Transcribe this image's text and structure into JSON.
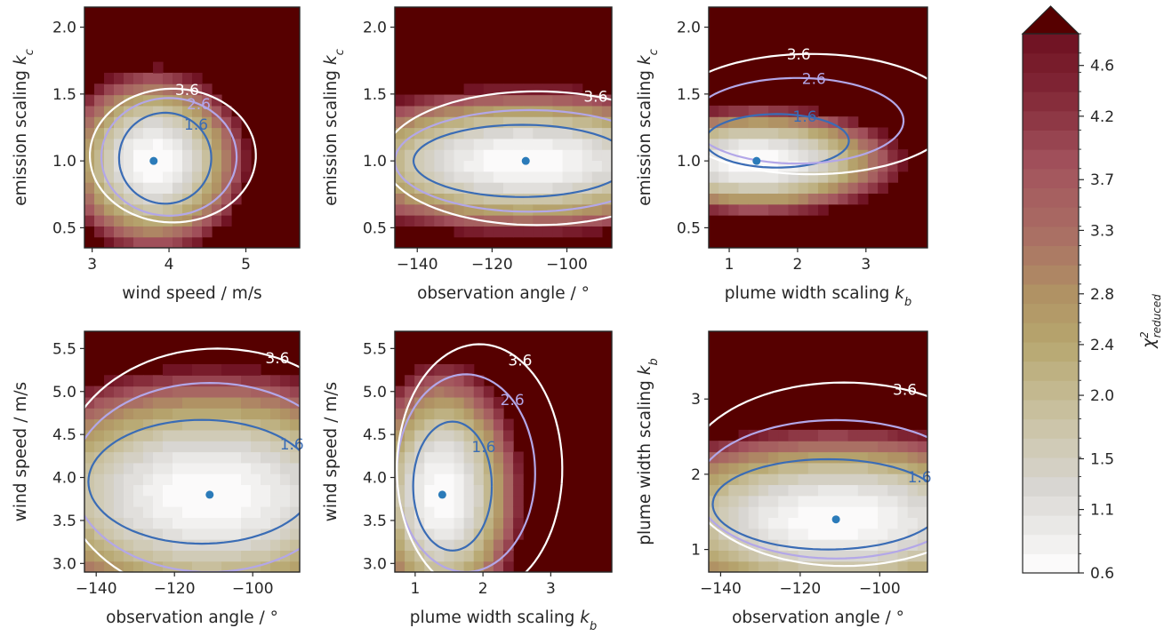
{
  "chart_data": [
    {
      "type": "heatmap",
      "xlabel": "wind speed / m/s",
      "ylabel": "emission scaling k_c",
      "xlim": [
        2.9,
        5.7
      ],
      "ylim": [
        0.35,
        2.15
      ],
      "xticks": [
        3,
        4,
        5
      ],
      "xtick_labels": [
        "3",
        "4",
        "5"
      ],
      "yticks": [
        0.5,
        1.0,
        1.5,
        2.0
      ],
      "ytick_labels": [
        "0.5",
        "1.0",
        "1.5",
        "2.0"
      ],
      "best_fit": {
        "x": 3.8,
        "y": 1.0
      },
      "contours": [
        {
          "level": 1.6,
          "label": "1.6",
          "cx": 3.95,
          "cy": 1.02,
          "rx": 0.6,
          "ry": 0.34,
          "tilt": 0.18
        },
        {
          "level": 2.6,
          "label": "2.6",
          "cx": 4.0,
          "cy": 1.03,
          "rx": 0.88,
          "ry": 0.44,
          "tilt": 0.2
        },
        {
          "level": 3.6,
          "label": "3.6",
          "cx": 4.05,
          "cy": 1.04,
          "rx": 1.08,
          "ry": 0.5,
          "tilt": 0.22
        }
      ]
    },
    {
      "type": "heatmap",
      "xlabel": "observation angle / °",
      "ylabel": "emission scaling k_c",
      "xlim": [
        -146,
        -88
      ],
      "ylim": [
        0.35,
        2.15
      ],
      "xticks": [
        -140,
        -120,
        -100
      ],
      "xtick_labels": [
        "−140",
        "−120",
        "−100"
      ],
      "yticks": [
        0.5,
        1.0,
        1.5,
        2.0
      ],
      "ytick_labels": [
        "0.5",
        "1.0",
        "1.5",
        "2.0"
      ],
      "best_fit": {
        "x": -111,
        "y": 1.0
      },
      "contours": [
        {
          "level": 1.6,
          "label": "1.6",
          "cx": -112,
          "cy": 1.0,
          "rx": 29,
          "ry": 0.27,
          "tilt": 0
        },
        {
          "level": 2.6,
          "label": "2.6",
          "cx": -110,
          "cy": 1.0,
          "rx": 36,
          "ry": 0.38,
          "tilt": 0
        },
        {
          "level": 3.6,
          "label": "3.6",
          "cx": -108,
          "cy": 1.02,
          "rx": 41,
          "ry": 0.5,
          "tilt": 0
        }
      ]
    },
    {
      "type": "heatmap",
      "xlabel": "plume width scaling k_b",
      "ylabel": "emission scaling k_c",
      "xlim": [
        0.7,
        3.9
      ],
      "ylim": [
        0.35,
        2.15
      ],
      "xticks": [
        1,
        2,
        3
      ],
      "xtick_labels": [
        "1",
        "2",
        "3"
      ],
      "yticks": [
        0.5,
        1.0,
        1.5,
        2.0
      ],
      "ytick_labels": [
        "0.5",
        "1.0",
        "1.5",
        "2.0"
      ],
      "best_fit": {
        "x": 1.4,
        "y": 1.0
      },
      "contours": [
        {
          "level": 1.6,
          "label": "1.6",
          "cx": 1.7,
          "cy": 1.15,
          "rx": 1.05,
          "ry": 0.2,
          "tilt": 0.52
        },
        {
          "level": 2.6,
          "label": "2.6",
          "cx": 2.0,
          "cy": 1.3,
          "rx": 1.55,
          "ry": 0.32,
          "tilt": 0.5
        },
        {
          "level": 3.6,
          "label": "3.6",
          "cx": 2.2,
          "cy": 1.35,
          "rx": 2.1,
          "ry": 0.45,
          "tilt": 0.48
        }
      ]
    },
    {
      "type": "heatmap",
      "xlabel": "observation angle / °",
      "ylabel": "wind speed / m/s",
      "xlim": [
        -143,
        -88
      ],
      "ylim": [
        2.9,
        5.7
      ],
      "xticks": [
        -140,
        -120,
        -100
      ],
      "xtick_labels": [
        "−140",
        "−120",
        "−100"
      ],
      "yticks": [
        3.0,
        3.5,
        4.0,
        4.5,
        5.0,
        5.5
      ],
      "ytick_labels": [
        "3.0",
        "3.5",
        "4.0",
        "4.5",
        "5.0",
        "5.5"
      ],
      "best_fit": {
        "x": -111,
        "y": 3.8
      },
      "contours": [
        {
          "level": 1.6,
          "label": "1.6",
          "cx": -113,
          "cy": 3.95,
          "rx": 29,
          "ry": 0.72,
          "tilt": 0
        },
        {
          "level": 2.6,
          "label": "2.6",
          "cx": -111,
          "cy": 4.0,
          "rx": 35,
          "ry": 1.1,
          "tilt": 0
        },
        {
          "level": 3.6,
          "label": "3.6",
          "cx": -109,
          "cy": 4.05,
          "rx": 40,
          "ry": 1.45,
          "tilt": 0
        }
      ]
    },
    {
      "type": "heatmap",
      "xlabel": "plume width scaling k_b",
      "ylabel": "wind speed / m/s",
      "xlim": [
        0.7,
        3.9
      ],
      "ylim": [
        2.9,
        5.7
      ],
      "xticks": [
        1,
        2,
        3
      ],
      "xtick_labels": [
        "1",
        "2",
        "3"
      ],
      "yticks": [
        3.0,
        3.5,
        4.0,
        4.5,
        5.0,
        5.5
      ],
      "ytick_labels": [
        "3.0",
        "3.5",
        "4.0",
        "4.5",
        "5.0",
        "5.5"
      ],
      "best_fit": {
        "x": 1.4,
        "y": 3.8
      },
      "contours": [
        {
          "level": 1.6,
          "label": "1.6",
          "cx": 1.55,
          "cy": 3.9,
          "rx": 0.58,
          "ry": 0.75,
          "tilt": 0
        },
        {
          "level": 2.6,
          "label": "2.6",
          "cx": 1.75,
          "cy": 4.05,
          "rx": 1.02,
          "ry": 1.15,
          "tilt": -0.08
        },
        {
          "level": 3.6,
          "label": "3.6",
          "cx": 1.95,
          "cy": 4.1,
          "rx": 1.22,
          "ry": 1.45,
          "tilt": -0.12
        }
      ]
    },
    {
      "type": "heatmap",
      "xlabel": "observation angle / °",
      "ylabel": "plume width scaling k_b",
      "xlim": [
        -143,
        -88
      ],
      "ylim": [
        0.7,
        3.9
      ],
      "xticks": [
        -140,
        -120,
        -100
      ],
      "xtick_labels": [
        "−140",
        "−120",
        "−100"
      ],
      "yticks": [
        1,
        2,
        3
      ],
      "ytick_labels": [
        "1",
        "2",
        "3"
      ],
      "best_fit": {
        "x": -111,
        "y": 1.4
      },
      "contours": [
        {
          "level": 1.6,
          "label": "1.6",
          "cx": -113,
          "cy": 1.6,
          "rx": 29,
          "ry": 0.6,
          "tilt": 0
        },
        {
          "level": 2.6,
          "label": "2.6",
          "cx": -111,
          "cy": 1.8,
          "rx": 35,
          "ry": 0.92,
          "tilt": 0
        },
        {
          "level": 3.6,
          "label": "3.6",
          "cx": -109,
          "cy": 2.0,
          "rx": 40,
          "ry": 1.22,
          "tilt": 0
        }
      ]
    }
  ],
  "colorbar": {
    "label": "χ²_reduced",
    "label_main": "χ",
    "label_sup": "2",
    "label_sub": "reduced",
    "vmin": 0.6,
    "vmax": 4.85,
    "extend": "max",
    "tick_values": [
      0.6,
      1.1,
      1.5,
      2.0,
      2.4,
      2.8,
      3.3,
      3.7,
      4.2,
      4.6
    ],
    "tick_labels": [
      "0.6",
      "1.1",
      "1.5",
      "2.0",
      "2.4",
      "2.8",
      "3.3",
      "3.7",
      "4.2",
      "4.6"
    ],
    "n_levels": 28
  },
  "colors": {
    "contour_1_6": "#3a6cb5",
    "contour_2_6": "#b3a7e8",
    "contour_3_6": "#ffffff",
    "best_fit_marker": "#2b7bb9",
    "saturated": "#560000"
  }
}
